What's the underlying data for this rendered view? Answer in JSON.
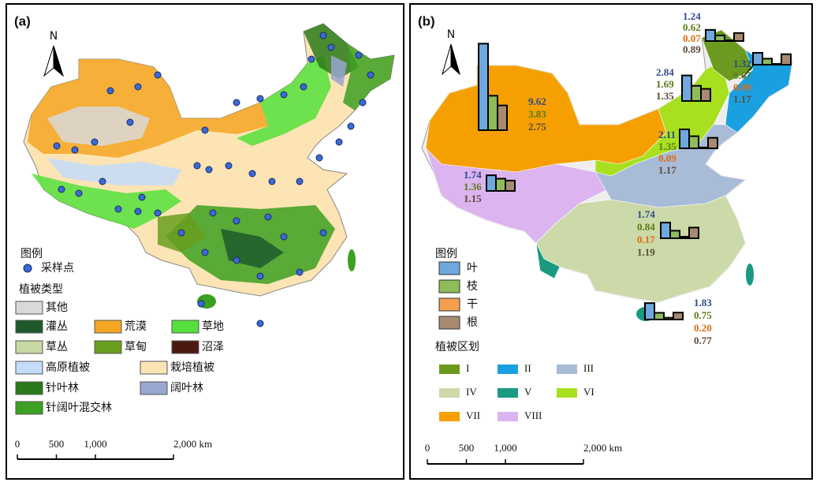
{
  "panel_a": {
    "label": "(a)",
    "north": "N",
    "legend_title": "图例",
    "sample_point": "采样点",
    "vegetation_title": "植被类型",
    "vegetation_types": [
      {
        "name": "其他",
        "color": "#d9d9d9"
      },
      {
        "name": "灌丛",
        "color": "#1e5a2c"
      },
      {
        "name": "荒漠",
        "color": "#f5a623"
      },
      {
        "name": "草地",
        "color": "#55e03c"
      },
      {
        "name": "草丛",
        "color": "#c8d8a2"
      },
      {
        "name": "草甸",
        "color": "#6a9e1e"
      },
      {
        "name": "沼泽",
        "color": "#4a1a10"
      },
      {
        "name": "高原植被",
        "color": "#c4dcfa"
      },
      {
        "name": "栽培植被",
        "color": "#fde4b4"
      },
      {
        "name": "针叶林",
        "color": "#2a7a1a"
      },
      {
        "name": "阔叶林",
        "color": "#98a6d0"
      },
      {
        "name": "针阔叶混交林",
        "color": "#3ca020"
      }
    ],
    "scale_ticks": [
      0,
      500,
      {
        "value": 1000,
        "label": "1,000"
      },
      {
        "value": 2000,
        "label": "2,000 km"
      }
    ]
  },
  "panel_b": {
    "label": "(b)",
    "north": "N",
    "legend_title": "图例",
    "organs": [
      {
        "name": "叶",
        "color": "#6fa8dc"
      },
      {
        "name": "枝",
        "color": "#8fbc5a"
      },
      {
        "name": "干",
        "color": "#f4a050"
      },
      {
        "name": "根",
        "color": "#a88a70"
      }
    ],
    "region_title": "植被区划",
    "regions": [
      {
        "name": "I",
        "color": "#6b9a1f"
      },
      {
        "name": "II",
        "color": "#1aa0e0"
      },
      {
        "name": "III",
        "color": "#a8bcd8"
      },
      {
        "name": "IV",
        "color": "#ccd9a8"
      },
      {
        "name": "V",
        "color": "#1a9a80"
      },
      {
        "name": "VI",
        "color": "#a8e020"
      },
      {
        "name": "VII",
        "color": "#f5a000"
      },
      {
        "name": "VIII",
        "color": "#dcb4f0"
      }
    ],
    "ratio_groups": [
      {
        "values": [
          1.24,
          0.62,
          0.07,
          0.89
        ]
      },
      {
        "values": [
          1.32,
          0.67,
          0.09,
          1.17
        ]
      },
      {
        "values": [
          2.84,
          1.69,
          null,
          1.35
        ]
      },
      {
        "values": [
          2.11,
          1.35,
          0.09,
          1.17
        ]
      },
      {
        "values": [
          9.62,
          3.83,
          null,
          2.75
        ]
      },
      {
        "values": [
          1.74,
          1.36,
          null,
          1.15
        ]
      },
      {
        "values": [
          1.74,
          0.84,
          0.17,
          1.19
        ]
      },
      {
        "values": [
          1.83,
          0.75,
          0.2,
          0.77
        ],
        "value_labels": [
          "1.83",
          "0.75",
          "0.20",
          "0.77"
        ]
      }
    ],
    "scale_ticks": [
      0,
      500,
      {
        "value": 1000,
        "label": "1,000"
      },
      {
        "value": 2000,
        "label": "2,000 km"
      }
    ]
  }
}
